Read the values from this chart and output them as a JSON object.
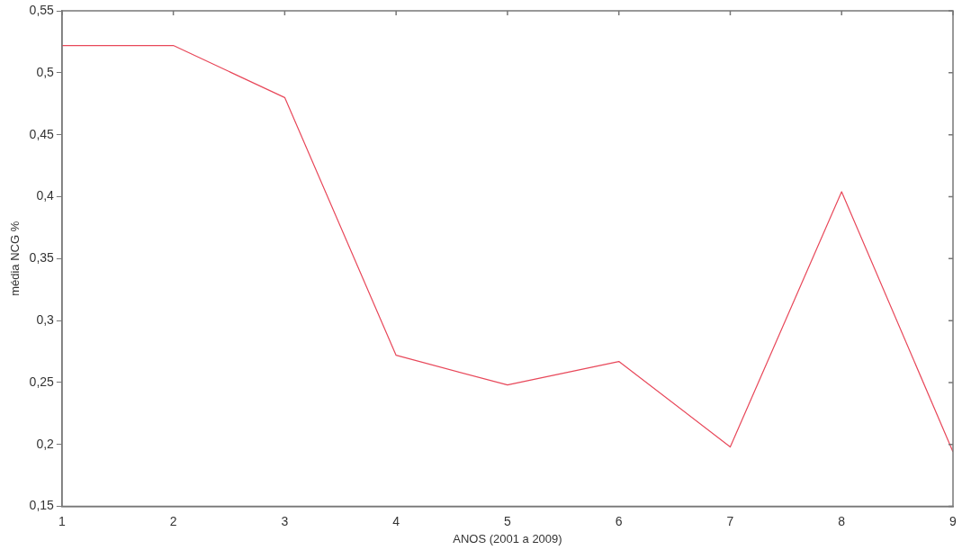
{
  "chart_data": {
    "type": "line",
    "xlabel": "ANOS (2001 a 2009)",
    "ylabel": "média NCG %",
    "x": [
      1,
      2,
      3,
      4,
      5,
      6,
      7,
      8,
      9
    ],
    "series": [
      {
        "color": "#e8485a",
        "values": [
          0.522,
          0.522,
          0.48,
          0.272,
          0.248,
          0.267,
          0.198,
          0.404,
          0.194
        ]
      }
    ],
    "xlim": [
      1,
      9
    ],
    "xticks": [
      1,
      2,
      3,
      4,
      5,
      6,
      7,
      8,
      9
    ],
    "ylim": [
      0.15,
      0.55
    ],
    "yticks": [
      {
        "value": 0.15,
        "label": "0,15"
      },
      {
        "value": 0.2,
        "label": "0,2"
      },
      {
        "value": 0.25,
        "label": "0,25"
      },
      {
        "value": 0.3,
        "label": "0,3"
      },
      {
        "value": 0.35,
        "label": "0,35"
      },
      {
        "value": 0.4,
        "label": "0,4"
      },
      {
        "value": 0.45,
        "label": "0,45"
      },
      {
        "value": 0.5,
        "label": "0,5"
      },
      {
        "value": 0.55,
        "label": "0,55"
      }
    ],
    "grid": false,
    "legend": false,
    "marker": "none",
    "line_style": "solid"
  }
}
